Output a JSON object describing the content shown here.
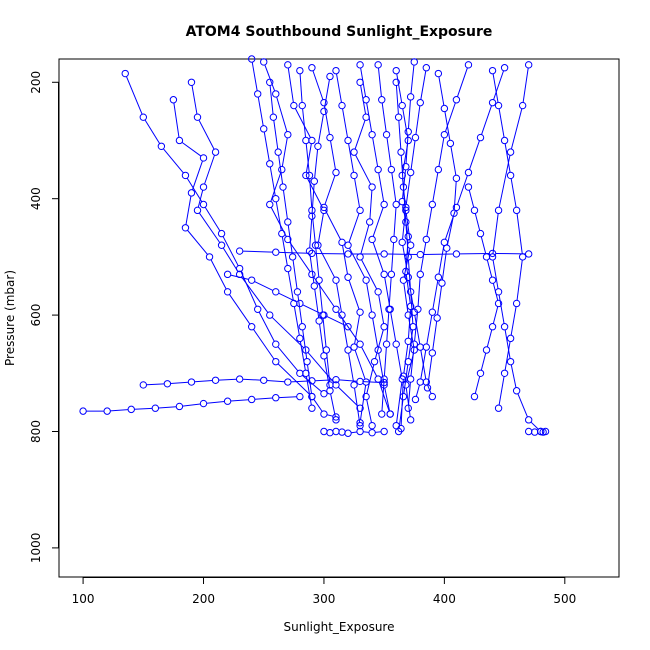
{
  "chart_data": {
    "type": "scatter",
    "title": "ATOM4 Southbound Sunlight_Exposure",
    "xlabel": "Sunlight_Exposure",
    "ylabel": "Pressure (mbar)",
    "xlim": [
      80,
      545
    ],
    "ylim": [
      1050,
      160
    ],
    "y_reversed": true,
    "x_ticks": [
      100,
      200,
      300,
      400,
      500
    ],
    "y_ticks": [
      200,
      400,
      600,
      800,
      1000
    ],
    "grid": false,
    "legend": "none",
    "marker": "open-circle",
    "connected": true,
    "series_color": "#0000ff",
    "series": [
      {
        "x": [
          135,
          150,
          165,
          185,
          200,
          215,
          230,
          245,
          260,
          280,
          300
        ],
        "y": [
          185,
          260,
          310,
          360,
          410,
          460,
          520,
          590,
          650,
          700,
          735
        ]
      },
      {
        "x": [
          175,
          180,
          200,
          190,
          185,
          205,
          220,
          240,
          260,
          290
        ],
        "y": [
          230,
          300,
          330,
          390,
          450,
          500,
          560,
          620,
          680,
          740
        ]
      },
      {
        "x": [
          190,
          195,
          210,
          200,
          195,
          215,
          230,
          255,
          285,
          310,
          330
        ],
        "y": [
          200,
          260,
          320,
          380,
          420,
          480,
          530,
          600,
          660,
          720,
          760
        ]
      },
      {
        "x": [
          250,
          260,
          270,
          265,
          255,
          270,
          290,
          310,
          330,
          345,
          355
        ],
        "y": [
          165,
          220,
          290,
          350,
          410,
          470,
          530,
          590,
          650,
          710,
          770
        ]
      },
      {
        "x": [
          270,
          275,
          290,
          285,
          300,
          295,
          310,
          315,
          320,
          325,
          330
        ],
        "y": [
          170,
          240,
          300,
          360,
          420,
          480,
          540,
          600,
          660,
          720,
          790
        ]
      },
      {
        "x": [
          290,
          300,
          305,
          310,
          300,
          315,
          320,
          330,
          325,
          335,
          330
        ],
        "y": [
          175,
          235,
          295,
          355,
          415,
          475,
          535,
          595,
          655,
          715,
          785
        ]
      },
      {
        "x": [
          310,
          315,
          320,
          325,
          330,
          320,
          335,
          340,
          345,
          350,
          355
        ],
        "y": [
          180,
          240,
          300,
          360,
          420,
          480,
          540,
          600,
          660,
          720,
          770
        ]
      },
      {
        "x": [
          330,
          335,
          340,
          345,
          350,
          340,
          350,
          355,
          360,
          365,
          360
        ],
        "y": [
          170,
          230,
          290,
          350,
          410,
          470,
          530,
          590,
          650,
          710,
          790
        ]
      },
      {
        "x": [
          360,
          365,
          370,
          365,
          368,
          372,
          366,
          370,
          375,
          368,
          372
        ],
        "y": [
          180,
          240,
          300,
          360,
          420,
          480,
          540,
          600,
          660,
          720,
          780
        ]
      },
      {
        "x": [
          375,
          372,
          370,
          368,
          365,
          370,
          368,
          372,
          370,
          366,
          364
        ],
        "y": [
          165,
          225,
          285,
          345,
          405,
          465,
          525,
          585,
          645,
          705,
          795
        ]
      },
      {
        "x": [
          385,
          380,
          376,
          372,
          368,
          365,
          370,
          375,
          380,
          385,
          390
        ],
        "y": [
          175,
          235,
          295,
          355,
          415,
          475,
          535,
          595,
          655,
          715,
          740
        ]
      },
      {
        "x": [
          420,
          410,
          400,
          395,
          390,
          385,
          380,
          378,
          375,
          372,
          370
        ],
        "y": [
          170,
          230,
          290,
          350,
          410,
          470,
          530,
          590,
          650,
          710,
          760
        ]
      },
      {
        "x": [
          450,
          440,
          430,
          420,
          410,
          400,
          395,
          390,
          385,
          380,
          376
        ],
        "y": [
          175,
          235,
          295,
          355,
          415,
          475,
          535,
          595,
          655,
          715,
          745
        ]
      },
      {
        "x": [
          470,
          465,
          455,
          445,
          440,
          445,
          450,
          455,
          460,
          470,
          480
        ],
        "y": [
          170,
          240,
          320,
          420,
          500,
          560,
          620,
          680,
          730,
          780,
          800
        ]
      },
      {
        "x": [
          100,
          120,
          140,
          160,
          180,
          200,
          220,
          240,
          260,
          280
        ],
        "y": [
          765,
          765,
          762,
          760,
          757,
          752,
          748,
          745,
          742,
          740
        ]
      },
      {
        "x": [
          150,
          170,
          190,
          210,
          230,
          250,
          270,
          290,
          310,
          330,
          350
        ],
        "y": [
          720,
          718,
          715,
          712,
          710,
          712,
          715,
          713,
          711,
          714,
          716
        ]
      },
      {
        "x": [
          230,
          260,
          290,
          320,
          350,
          380,
          410,
          440,
          470
        ],
        "y": [
          490,
          492,
          494,
          495,
          495,
          496,
          495,
          494,
          495
        ]
      },
      {
        "x": [
          220,
          240,
          260,
          280,
          300,
          320
        ],
        "y": [
          530,
          540,
          560,
          580,
          600,
          620
        ]
      },
      {
        "x": [
          300,
          305,
          310,
          315,
          320,
          330,
          340,
          350
        ],
        "y": [
          800,
          802,
          800,
          801,
          803,
          800,
          802,
          800
        ]
      },
      {
        "x": [
          470,
          475,
          480,
          482,
          484
        ],
        "y": [
          800,
          801,
          800,
          801,
          800
        ]
      },
      {
        "x": [
          330,
          335,
          325,
          340,
          338,
          330,
          345,
          350,
          342,
          335,
          340
        ],
        "y": [
          200,
          260,
          320,
          380,
          440,
          500,
          560,
          620,
          680,
          740,
          790
        ]
      },
      {
        "x": [
          305,
          300,
          295,
          292,
          290,
          288,
          292,
          296,
          300,
          305,
          310
        ],
        "y": [
          190,
          250,
          310,
          370,
          430,
          490,
          550,
          610,
          670,
          730,
          780
        ]
      },
      {
        "x": [
          240,
          245,
          250,
          255,
          260,
          265,
          270,
          275,
          280,
          285,
          290
        ],
        "y": [
          160,
          220,
          280,
          340,
          400,
          460,
          520,
          580,
          640,
          700,
          760
        ]
      },
      {
        "x": [
          440,
          445,
          450,
          455,
          460,
          465,
          460,
          455,
          450,
          445
        ],
        "y": [
          180,
          240,
          300,
          360,
          420,
          500,
          580,
          640,
          700,
          760
        ]
      },
      {
        "x": [
          395,
          400,
          405,
          410,
          408,
          402,
          398,
          394,
          390,
          386
        ],
        "y": [
          185,
          245,
          305,
          365,
          425,
          485,
          545,
          605,
          665,
          725
        ]
      },
      {
        "x": [
          345,
          348,
          352,
          356,
          360,
          358,
          356,
          354,
          352,
          350,
          348
        ],
        "y": [
          170,
          230,
          290,
          350,
          410,
          470,
          530,
          590,
          650,
          710,
          770
        ]
      },
      {
        "x": [
          280,
          282,
          285,
          288,
          290,
          293,
          296,
          299,
          302,
          305
        ],
        "y": [
          180,
          240,
          300,
          360,
          420,
          480,
          540,
          600,
          660,
          720
        ]
      },
      {
        "x": [
          255,
          258,
          262,
          266,
          270,
          274,
          278,
          282,
          286,
          290,
          300,
          310
        ],
        "y": [
          200,
          260,
          320,
          380,
          440,
          500,
          560,
          620,
          680,
          740,
          770,
          775
        ]
      },
      {
        "x": [
          360,
          362,
          364,
          366,
          368,
          370,
          372,
          374,
          370,
          366,
          362
        ],
        "y": [
          200,
          260,
          320,
          380,
          440,
          500,
          560,
          620,
          680,
          740,
          800
        ]
      },
      {
        "x": [
          420,
          425,
          430,
          435,
          440,
          445,
          440,
          435,
          430,
          425
        ],
        "y": [
          380,
          420,
          460,
          500,
          540,
          580,
          620,
          660,
          700,
          740
        ]
      }
    ]
  }
}
